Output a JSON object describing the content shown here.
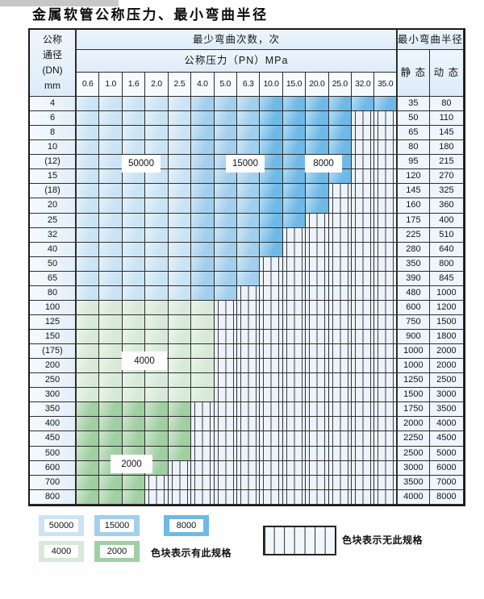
{
  "page": {
    "title": "金属软管公称压力、最小弯曲半径"
  },
  "table": {
    "dn_header_lines": [
      "公称",
      "通径",
      "(DN)",
      "mm"
    ],
    "bend_times_header": "最少弯曲次数，次",
    "pressure_header": "公称压力（PN）MPa",
    "radius_header": "最小弯曲半径",
    "static_header": "静 态",
    "dynamic_header": "动 态",
    "pressure_columns": [
      "0.6",
      "1.0",
      "1.6",
      "2.0",
      "2.5",
      "4.0",
      "5.0",
      "6.3",
      "10.0",
      "15.0",
      "20.0",
      "25.0",
      "32.0",
      "35.0"
    ],
    "zone_labels": [
      "50000",
      "15000",
      "8000",
      "4000",
      "2000"
    ],
    "blue_subzones": {
      "c50000_through_col": 5,
      "c15000_through_col": 8
    },
    "rows": [
      {
        "dn": "4",
        "zone": "blue",
        "spec_through_col": 14,
        "static": "35",
        "dynamic": "80"
      },
      {
        "dn": "6",
        "zone": "blue",
        "spec_through_col": 12,
        "static": "50",
        "dynamic": "110"
      },
      {
        "dn": "8",
        "zone": "blue",
        "spec_through_col": 12,
        "static": "65",
        "dynamic": "145"
      },
      {
        "dn": "10",
        "zone": "blue",
        "spec_through_col": 12,
        "static": "80",
        "dynamic": "180"
      },
      {
        "dn": "(12)",
        "zone": "blue",
        "spec_through_col": 12,
        "static": "95",
        "dynamic": "215"
      },
      {
        "dn": "15",
        "zone": "blue",
        "spec_through_col": 12,
        "static": "120",
        "dynamic": "270"
      },
      {
        "dn": "(18)",
        "zone": "blue",
        "spec_through_col": 11,
        "static": "145",
        "dynamic": "325"
      },
      {
        "dn": "20",
        "zone": "blue",
        "spec_through_col": 11,
        "static": "160",
        "dynamic": "360"
      },
      {
        "dn": "25",
        "zone": "blue",
        "spec_through_col": 10,
        "static": "175",
        "dynamic": "400"
      },
      {
        "dn": "32",
        "zone": "blue",
        "spec_through_col": 9,
        "static": "225",
        "dynamic": "510"
      },
      {
        "dn": "40",
        "zone": "blue",
        "spec_through_col": 9,
        "static": "280",
        "dynamic": "640"
      },
      {
        "dn": "50",
        "zone": "blue",
        "spec_through_col": 8,
        "static": "350",
        "dynamic": "800"
      },
      {
        "dn": "65",
        "zone": "blue",
        "spec_through_col": 8,
        "static": "390",
        "dynamic": "845"
      },
      {
        "dn": "80",
        "zone": "blue",
        "spec_through_col": 7,
        "static": "480",
        "dynamic": "1000"
      },
      {
        "dn": "100",
        "zone": "g4000",
        "spec_through_col": 6,
        "static": "600",
        "dynamic": "1200"
      },
      {
        "dn": "125",
        "zone": "g4000",
        "spec_through_col": 6,
        "static": "750",
        "dynamic": "1500"
      },
      {
        "dn": "150",
        "zone": "g4000",
        "spec_through_col": 6,
        "static": "900",
        "dynamic": "1800"
      },
      {
        "dn": "(175)",
        "zone": "g4000",
        "spec_through_col": 6,
        "static": "1000",
        "dynamic": "2000"
      },
      {
        "dn": "200",
        "zone": "g4000",
        "spec_through_col": 6,
        "static": "1000",
        "dynamic": "2000"
      },
      {
        "dn": "250",
        "zone": "g4000",
        "spec_through_col": 6,
        "static": "1250",
        "dynamic": "2500"
      },
      {
        "dn": "300",
        "zone": "g4000",
        "spec_through_col": 6,
        "static": "1500",
        "dynamic": "3000"
      },
      {
        "dn": "350",
        "zone": "g2000",
        "spec_through_col": 5,
        "static": "1750",
        "dynamic": "3500"
      },
      {
        "dn": "400",
        "zone": "g2000",
        "spec_through_col": 5,
        "static": "2000",
        "dynamic": "4000"
      },
      {
        "dn": "450",
        "zone": "g2000",
        "spec_through_col": 5,
        "static": "2250",
        "dynamic": "4500"
      },
      {
        "dn": "500",
        "zone": "g2000",
        "spec_through_col": 5,
        "static": "2500",
        "dynamic": "5000"
      },
      {
        "dn": "600",
        "zone": "g2000",
        "spec_through_col": 4,
        "static": "3000",
        "dynamic": "6000"
      },
      {
        "dn": "700",
        "zone": "g2000",
        "spec_through_col": 3,
        "static": "3500",
        "dynamic": "7000"
      },
      {
        "dn": "800",
        "zone": "g2000",
        "spec_through_col": 3,
        "static": "4000",
        "dynamic": "8000"
      }
    ]
  },
  "legend": {
    "has_spec_items": [
      {
        "label": "50000",
        "zone": "c50000"
      },
      {
        "label": "15000",
        "zone": "c15000"
      },
      {
        "label": "8000",
        "zone": "c8000"
      },
      {
        "label": "4000",
        "zone": "c4000"
      },
      {
        "label": "2000",
        "zone": "c2000"
      }
    ],
    "has_spec_text": "色块表示有此规格",
    "no_spec_text": "色块表示无此规格"
  },
  "colors": {
    "c50000": "#cbe4f5",
    "c15000": "#a2cfed",
    "c8000": "#6fb9e6",
    "c4000": "#d8ead7",
    "c2000": "#a0cfa2",
    "nospec": "#edf3fa"
  }
}
